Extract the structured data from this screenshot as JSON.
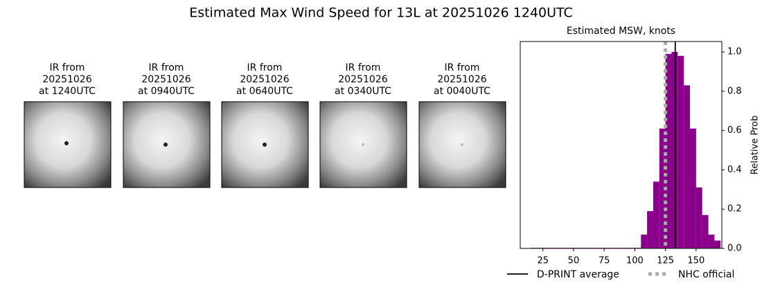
{
  "title": "Estimated Max Wind Speed for 13L at 20251026 1240UTC",
  "panels": [
    {
      "lines": [
        "IR from",
        "20251026",
        "at 1240UTC"
      ]
    },
    {
      "lines": [
        "IR from",
        "20251026",
        "at 0940UTC"
      ]
    },
    {
      "lines": [
        "IR from",
        "20251026",
        "at 0640UTC"
      ]
    },
    {
      "lines": [
        "IR from",
        "20251026",
        "at 0340UTC"
      ]
    },
    {
      "lines": [
        "IR from",
        "20251026",
        "at 0040UTC"
      ]
    }
  ],
  "chart_data": {
    "type": "histogram",
    "title": "Estimated MSW, knots",
    "ylabel": "Relative Prob",
    "bins": [
      15,
      20,
      25,
      30,
      35,
      40,
      45,
      50,
      55,
      60,
      65,
      70,
      75,
      80,
      85,
      90,
      95,
      100,
      105,
      110,
      115,
      120,
      125,
      130,
      135,
      140,
      145,
      150,
      155,
      160,
      165,
      170
    ],
    "values": [
      0.003,
      0.003,
      0.003,
      0.003,
      0.003,
      0.003,
      0.003,
      0.003,
      0.003,
      0.003,
      0.003,
      0.003,
      0.003,
      0.003,
      0.003,
      0.003,
      0.003,
      0.003,
      0.07,
      0.19,
      0.34,
      0.61,
      0.99,
      1.0,
      0.98,
      0.83,
      0.61,
      0.31,
      0.17,
      0.07,
      0.04
    ],
    "color": "#8b008b",
    "xlim": [
      6.5,
      171
    ],
    "ylim": [
      0,
      1.053
    ],
    "xticks": [
      25,
      50,
      75,
      100,
      125,
      150
    ],
    "yticks": [
      {
        "value": 0,
        "label": "0.0"
      },
      {
        "value": 0.2,
        "label": "0.2"
      },
      {
        "value": 0.4,
        "label": "0.4"
      },
      {
        "value": 0.6,
        "label": "0.6"
      },
      {
        "value": 0.8,
        "label": "0.8"
      },
      {
        "value": 1,
        "label": "1.0"
      }
    ],
    "lines": [
      {
        "name": "D-PRINT average",
        "value": 133,
        "color": "#000000",
        "style": "solid"
      },
      {
        "name": "NHC official",
        "value": 125,
        "color": "#aaaaaa",
        "style": "dotted"
      }
    ]
  }
}
